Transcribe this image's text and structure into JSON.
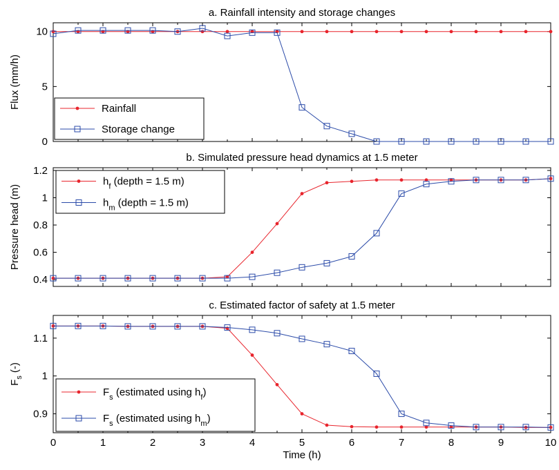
{
  "chart_data": [
    {
      "type": "line",
      "title": "a. Rainfall intensity and storage changes",
      "xlabel": "",
      "ylabel": "Flux (mm/h)",
      "xlim": [
        0,
        10
      ],
      "ylim": [
        0,
        10.8
      ],
      "xticks": [
        0,
        1,
        2,
        3,
        4,
        5,
        6,
        7,
        8,
        9,
        10
      ],
      "yticks": [
        0,
        5,
        10
      ],
      "x": [
        0,
        0.5,
        1,
        1.5,
        2,
        2.5,
        3,
        3.5,
        4,
        4.5,
        5,
        5.5,
        6,
        6.5,
        7,
        7.5,
        8,
        8.5,
        9,
        9.5,
        10
      ],
      "series": [
        {
          "name": "Rainfall",
          "color": "#e8242c",
          "marker": "dot",
          "values": [
            10,
            10,
            10,
            10,
            10,
            10,
            10,
            10,
            10,
            10,
            10,
            10,
            10,
            10,
            10,
            10,
            10,
            10,
            10,
            10,
            10
          ]
        },
        {
          "name": "Storage change",
          "color": "#2a4aa8",
          "marker": "square",
          "values": [
            9.8,
            10.1,
            10.1,
            10.1,
            10.1,
            10.0,
            10.3,
            9.6,
            9.9,
            9.9,
            3.1,
            1.4,
            0.7,
            0,
            0,
            0,
            0,
            0,
            0,
            0,
            0
          ]
        }
      ],
      "legend": {
        "position": "bottom-left",
        "entries": [
          {
            "text": "Rainfall",
            "sub": ""
          },
          {
            "text": "Storage change",
            "sub": ""
          }
        ]
      }
    },
    {
      "type": "line",
      "title": "b. Simulated pressure head dynamics at 1.5 meter",
      "xlabel": "",
      "ylabel": "Pressure head (m)",
      "xlim": [
        0,
        10
      ],
      "ylim": [
        0.35,
        1.22
      ],
      "xticks": [
        0,
        1,
        2,
        3,
        4,
        5,
        6,
        7,
        8,
        9,
        10
      ],
      "yticks": [
        0.4,
        0.6,
        0.8,
        1,
        1.2
      ],
      "x": [
        0,
        0.5,
        1,
        1.5,
        2,
        2.5,
        3,
        3.5,
        4,
        4.5,
        5,
        5.5,
        6,
        6.5,
        7,
        7.5,
        8,
        8.5,
        9,
        9.5,
        10
      ],
      "series": [
        {
          "name": "h_f (depth = 1.5 m)",
          "color": "#e8242c",
          "marker": "dot",
          "values": [
            0.41,
            0.41,
            0.41,
            0.41,
            0.41,
            0.41,
            0.41,
            0.42,
            0.6,
            0.81,
            1.03,
            1.11,
            1.12,
            1.13,
            1.13,
            1.13,
            1.13,
            1.13,
            1.13,
            1.13,
            1.14
          ]
        },
        {
          "name": "h_m (depth = 1.5 m)",
          "color": "#2a4aa8",
          "marker": "square",
          "values": [
            0.41,
            0.41,
            0.41,
            0.41,
            0.41,
            0.41,
            0.41,
            0.41,
            0.42,
            0.45,
            0.49,
            0.52,
            0.57,
            0.74,
            1.03,
            1.1,
            1.12,
            1.13,
            1.13,
            1.13,
            1.14
          ]
        }
      ],
      "legend": {
        "position": "top-left",
        "entries": [
          {
            "text": "h",
            "sub": "f",
            "rest": "  (depth = 1.5 m)"
          },
          {
            "text": "h",
            "sub": "m",
            "rest": "  (depth = 1.5 m)"
          }
        ]
      }
    },
    {
      "type": "line",
      "title": "c. Estimated factor of safety at 1.5 meter",
      "xlabel": "Time (h)",
      "ylabel": "F",
      "ylabel_sub": "s",
      "ylabel_rest": " (-)",
      "xlim": [
        0,
        10
      ],
      "ylim": [
        0.85,
        1.16
      ],
      "xticks": [
        0,
        1,
        2,
        3,
        4,
        5,
        6,
        7,
        8,
        9,
        10
      ],
      "yticks": [
        0.9,
        1,
        1.1
      ],
      "x": [
        0,
        0.5,
        1,
        1.5,
        2,
        2.5,
        3,
        3.5,
        4,
        4.5,
        5,
        5.5,
        6,
        6.5,
        7,
        7.5,
        8,
        8.5,
        9,
        9.5,
        10
      ],
      "series": [
        {
          "name": "F_s (estimated using h_f)",
          "color": "#e8242c",
          "marker": "dot",
          "values": [
            1.132,
            1.132,
            1.132,
            1.131,
            1.131,
            1.131,
            1.131,
            1.126,
            1.055,
            0.977,
            0.9,
            0.87,
            0.866,
            0.865,
            0.865,
            0.865,
            0.865,
            0.865,
            0.865,
            0.864,
            0.864
          ]
        },
        {
          "name": "F_s (estimated using h_m)",
          "color": "#2a4aa8",
          "marker": "square",
          "values": [
            1.132,
            1.132,
            1.132,
            1.131,
            1.131,
            1.131,
            1.131,
            1.128,
            1.122,
            1.113,
            1.098,
            1.084,
            1.066,
            1.006,
            0.9,
            0.876,
            0.869,
            0.865,
            0.865,
            0.865,
            0.864
          ]
        }
      ],
      "legend": {
        "position": "bottom-left",
        "entries": [
          {
            "text": "F",
            "sub": "s",
            "rest": " (estimated using h",
            "sub2": "f",
            "rest2": ")"
          },
          {
            "text": "F",
            "sub": "s",
            "rest": " (estimated using h",
            "sub2": "m",
            "rest2": ")"
          }
        ]
      }
    }
  ]
}
